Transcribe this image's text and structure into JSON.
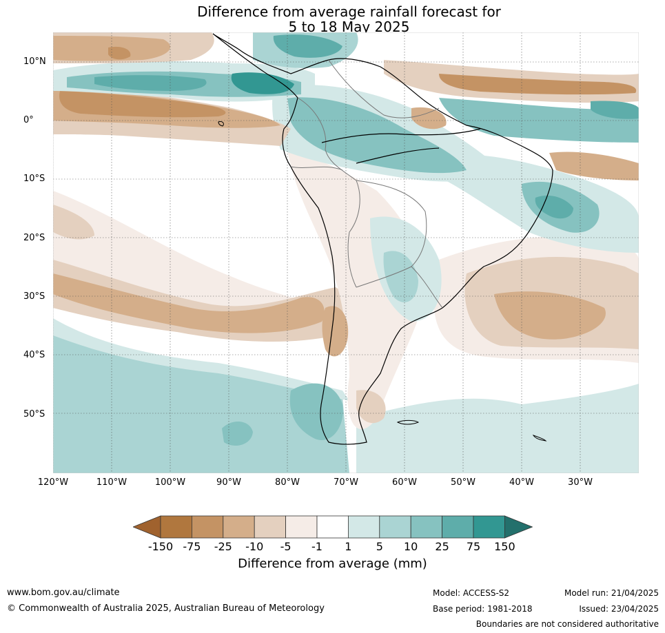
{
  "title_line1": "Difference from average rainfall forecast for",
  "title_line2": "5 to 18 May 2025",
  "map": {
    "lat_ticks": [
      {
        "label": "10°N",
        "lat": 10
      },
      {
        "label": "0°",
        "lat": 0
      },
      {
        "label": "10°S",
        "lat": -10
      },
      {
        "label": "20°S",
        "lat": -20
      },
      {
        "label": "30°S",
        "lat": -30
      },
      {
        "label": "40°S",
        "lat": -40
      },
      {
        "label": "50°S",
        "lat": -50
      }
    ],
    "lon_ticks": [
      {
        "label": "120°W",
        "lon": -120
      },
      {
        "label": "110°W",
        "lon": -110
      },
      {
        "label": "100°W",
        "lon": -100
      },
      {
        "label": "90°W",
        "lon": -90
      },
      {
        "label": "80°W",
        "lon": -80
      },
      {
        "label": "70°W",
        "lon": -70
      },
      {
        "label": "60°W",
        "lon": -60
      },
      {
        "label": "50°W",
        "lon": -50
      },
      {
        "label": "40°W",
        "lon": -40
      },
      {
        "label": "30°W",
        "lon": -30
      }
    ],
    "extent": {
      "lon_min": -120,
      "lon_max": -20,
      "lat_min": -60,
      "lat_max": 15
    }
  },
  "colorbar": {
    "label": "Difference from average (mm)",
    "ticks": [
      "-150",
      "-75",
      "-25",
      "-10",
      "-5",
      "-1",
      "1",
      "5",
      "10",
      "25",
      "75",
      "150"
    ],
    "colors": [
      "#a0622e",
      "#b0773e",
      "#c49364",
      "#d4ae8a",
      "#e4d0bf",
      "#f5ece7",
      "#ffffff",
      "#d3e8e7",
      "#aad4d3",
      "#86c2c0",
      "#5eadaa",
      "#329792",
      "#23706c"
    ]
  },
  "footer": {
    "url": "www.bom.gov.au/climate",
    "copyright": "© Commonwealth of Australia 2025, Australian Bureau of Meteorology",
    "model": "Model: ACCESS-S2",
    "base_period": "Base period: 1981-2018",
    "model_run": "Model run: 21/04/2025",
    "issued": "Issued: 23/04/2025",
    "boundaries": "Boundaries are not considered authoritative"
  }
}
